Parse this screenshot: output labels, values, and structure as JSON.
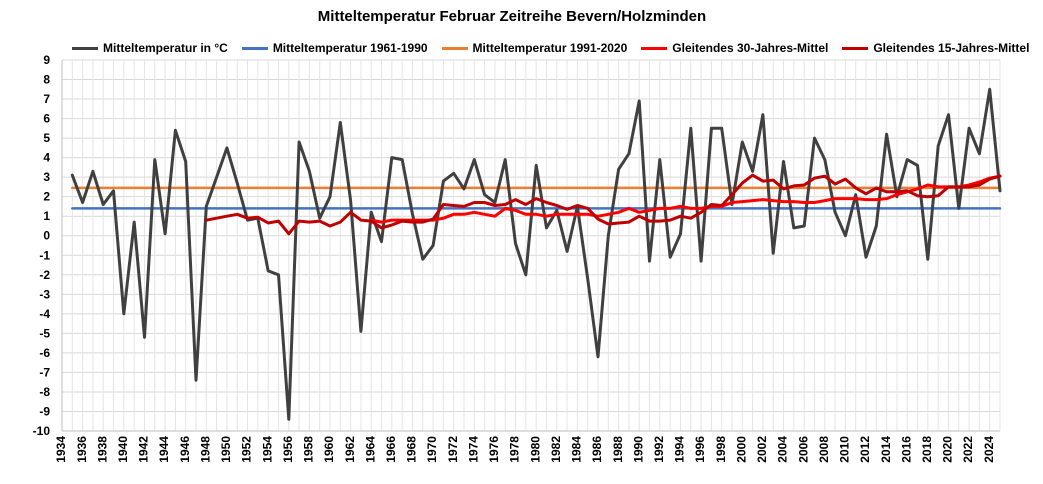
{
  "chart_data": {
    "type": "line",
    "title": "Mitteltemperatur Februar Zeitreihe Bevern/Holzminden",
    "xlabel": "",
    "ylabel": "",
    "xlim": [
      1934,
      2025
    ],
    "ylim": [
      -10,
      9
    ],
    "x_ticks": [
      "1934",
      "1936",
      "1938",
      "1940",
      "1942",
      "1944",
      "1946",
      "1948",
      "1950",
      "1952",
      "1954",
      "1956",
      "1958",
      "1960",
      "1962",
      "1964",
      "1966",
      "1968",
      "1970",
      "1972",
      "1974",
      "1976",
      "1978",
      "1980",
      "1982",
      "1984",
      "1986",
      "1988",
      "1990",
      "1992",
      "1994",
      "1996",
      "1998",
      "2000",
      "2002",
      "2004",
      "2006",
      "2008",
      "2010",
      "2012",
      "2014",
      "2016",
      "2018",
      "2020",
      "2022",
      "2024"
    ],
    "y_ticks": [
      "-10",
      "-9",
      "-8",
      "-7",
      "-6",
      "-5",
      "-4",
      "-3",
      "-2",
      "-1",
      "0",
      "1",
      "2",
      "3",
      "4",
      "5",
      "6",
      "7",
      "8",
      "9"
    ],
    "legend": [
      {
        "name": "Mitteltemperatur in °C",
        "color": "#404040"
      },
      {
        "name": "Mitteltemperatur 1961-1990",
        "color": "#4472C4"
      },
      {
        "name": "Mitteltemperatur 1991-2020",
        "color": "#ED7D31"
      },
      {
        "name": "Gleitendes 30-Jahres-Mittel",
        "color": "#FF0000"
      },
      {
        "name": "Gleitendes 15-Jahres-Mittel",
        "color": "#C00000"
      }
    ],
    "series": [
      {
        "name": "Mitteltemperatur in °C",
        "color": "#404040",
        "x_start": 1935,
        "values": [
          3.1,
          1.7,
          3.3,
          1.6,
          2.3,
          -4.0,
          0.7,
          -5.2,
          3.9,
          0.1,
          5.4,
          3.8,
          -7.4,
          1.5,
          3.0,
          4.5,
          2.7,
          0.8,
          0.9,
          -1.8,
          -2.0,
          -9.4,
          4.8,
          3.3,
          0.9,
          2.0,
          5.8,
          1.8,
          -4.9,
          1.2,
          -0.3,
          4.0,
          3.9,
          1.1,
          -1.2,
          -0.5,
          2.8,
          3.2,
          2.4,
          3.9,
          2.1,
          1.7,
          3.9,
          -0.4,
          -2.0,
          3.6,
          0.4,
          1.3,
          -0.8,
          1.5,
          -2.2,
          -6.2,
          0.0,
          3.4,
          4.2,
          6.9,
          -1.3,
          3.9,
          -1.1,
          0.1,
          5.5,
          -1.3,
          5.5,
          5.5,
          1.6,
          4.8,
          3.3,
          6.2,
          -0.9,
          3.8,
          0.4,
          0.5,
          5.0,
          3.9,
          1.2,
          0.0,
          2.1,
          -1.1,
          0.5,
          5.2,
          2.0,
          3.9,
          3.6,
          -1.2,
          4.6,
          6.2,
          1.4,
          5.5,
          4.2,
          7.5,
          2.3
        ]
      },
      {
        "name": "Mitteltemperatur 1961-1990",
        "color": "#4472C4",
        "x_start": 1935,
        "x_end": 2025,
        "value": 1.4
      },
      {
        "name": "Mitteltemperatur 1991-2020",
        "color": "#ED7D31",
        "x_start": 1935,
        "x_end": 2025,
        "value": 2.45
      },
      {
        "name": "Gleitendes 30-Jahres-Mittel",
        "color": "#FF0000",
        "x_start": 1964,
        "values": [
          0.8,
          0.7,
          0.8,
          0.8,
          0.8,
          0.8,
          0.8,
          0.9,
          1.1,
          1.1,
          1.2,
          1.1,
          1.0,
          1.4,
          1.3,
          1.1,
          1.1,
          1.0,
          1.1,
          1.1,
          1.1,
          1.1,
          1.0,
          1.1,
          1.2,
          1.4,
          1.2,
          1.3,
          1.4,
          1.4,
          1.5,
          1.4,
          1.4,
          1.5,
          1.5,
          1.7,
          1.75,
          1.8,
          1.85,
          1.8,
          1.75,
          1.75,
          1.7,
          1.7,
          1.8,
          1.9,
          1.9,
          1.9,
          1.85,
          1.85,
          1.9,
          2.1,
          2.25,
          2.4,
          2.6,
          2.5,
          2.5,
          2.5,
          2.6,
          2.75,
          2.95,
          3.05
        ]
      },
      {
        "name": "Gleitendes 15-Jahres-Mittel",
        "color": "#C00000",
        "x_start": 1948,
        "values": [
          0.8,
          0.9,
          1.0,
          1.1,
          0.9,
          0.95,
          0.65,
          0.75,
          0.1,
          0.75,
          0.7,
          0.75,
          0.5,
          0.7,
          1.2,
          0.8,
          0.75,
          0.4,
          0.55,
          0.75,
          0.7,
          0.7,
          0.85,
          1.6,
          1.55,
          1.5,
          1.7,
          1.7,
          1.55,
          1.6,
          1.85,
          1.6,
          1.9,
          1.7,
          1.55,
          1.35,
          1.55,
          1.4,
          0.85,
          0.6,
          0.65,
          0.7,
          1.0,
          0.75,
          0.75,
          0.8,
          1.0,
          0.9,
          1.2,
          1.6,
          1.55,
          2.1,
          2.7,
          3.1,
          2.8,
          2.85,
          2.4,
          2.55,
          2.6,
          2.95,
          3.05,
          2.65,
          2.9,
          2.45,
          2.15,
          2.45,
          2.25,
          2.25,
          2.3,
          2.05,
          2.0,
          2.05,
          2.5,
          2.5,
          2.5,
          2.6,
          2.9,
          3.05
        ]
      }
    ]
  }
}
